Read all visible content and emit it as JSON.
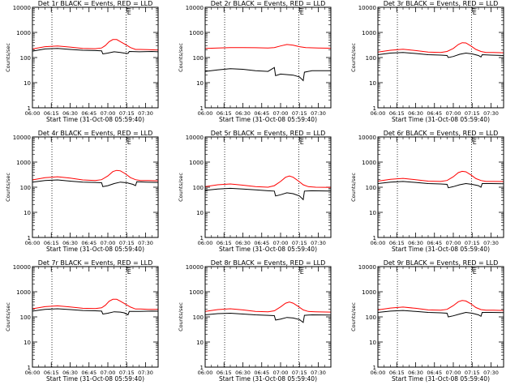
{
  "figure": {
    "colors": {
      "events": "#000000",
      "lld": "#ff0000",
      "frame": "#000000"
    }
  },
  "chart_data": [
    {
      "type": "line",
      "title": "Det 1r BLACK = Events, RED = LLD",
      "xlabel": "Start Time (31-Oct-08 05:59:40)",
      "ylabel": "Counts/sec",
      "x_ticks": [
        "06:00",
        "06:15",
        "06:30",
        "06:45",
        "07:00",
        "07:15",
        "07:30"
      ],
      "x_range_minutes": [
        0,
        100
      ],
      "y_scale": "log",
      "y_ticks": [
        "1",
        "10",
        "100",
        "1000",
        "10000"
      ],
      "ylim": [
        1,
        10000
      ],
      "markers": {
        "dotted_lines_minutes": [
          15.5,
          74.5
        ],
        "E_label_minute": 74
      },
      "series": [
        {
          "name": "Events",
          "x": [
            0,
            10,
            20,
            30,
            40,
            50,
            55,
            56,
            60,
            65,
            70,
            73,
            76,
            77,
            85,
            95,
            100
          ],
          "y": [
            180,
            220,
            230,
            210,
            195,
            190,
            185,
            140,
            150,
            170,
            160,
            150,
            145,
            175,
            170,
            175,
            170
          ]
        },
        {
          "name": "LLD",
          "x": [
            0,
            10,
            20,
            30,
            40,
            50,
            55,
            58,
            61,
            64,
            67,
            70,
            74,
            78,
            82,
            86,
            92,
            100
          ],
          "y": [
            220,
            270,
            290,
            260,
            230,
            225,
            240,
            300,
            430,
            520,
            520,
            430,
            330,
            250,
            210,
            210,
            205,
            200
          ]
        }
      ]
    },
    {
      "type": "line",
      "title": "Det 2r BLACK = Events, RED = LLD",
      "xlabel": "Start Time (31-Oct-08 05:59:40)",
      "ylabel": "Counts/sec",
      "x_ticks": [
        "06:00",
        "06:15",
        "06:30",
        "06:45",
        "07:00",
        "07:15",
        "07:30"
      ],
      "x_range_minutes": [
        0,
        100
      ],
      "y_scale": "log",
      "y_ticks": [
        "1",
        "10",
        "100",
        "1000",
        "10000"
      ],
      "ylim": [
        1,
        10000
      ],
      "markers": {
        "dotted_lines_minutes": [
          15.5,
          74.5
        ],
        "E_label_minute": 74
      },
      "series": [
        {
          "name": "Events",
          "x": [
            0,
            10,
            20,
            30,
            40,
            50,
            55,
            56,
            60,
            70,
            75,
            78,
            79,
            85,
            100
          ],
          "y": [
            28,
            32,
            36,
            34,
            30,
            28,
            40,
            19,
            22,
            20,
            17,
            12,
            26,
            30,
            30
          ]
        },
        {
          "name": "LLD",
          "x": [
            0,
            10,
            20,
            30,
            40,
            50,
            55,
            60,
            65,
            70,
            75,
            80,
            90,
            100
          ],
          "y": [
            230,
            240,
            250,
            250,
            245,
            240,
            250,
            290,
            330,
            310,
            270,
            250,
            240,
            235
          ]
        }
      ]
    },
    {
      "type": "line",
      "title": "Det 3r BLACK = Events, RED = LLD",
      "xlabel": "Start Time (31-Oct-08 05:59:40)",
      "ylabel": "Counts/sec",
      "x_ticks": [
        "06:00",
        "06:15",
        "06:30",
        "06:45",
        "07:00",
        "07:15",
        "07:30"
      ],
      "x_range_minutes": [
        0,
        100
      ],
      "y_scale": "log",
      "y_ticks": [
        "1",
        "10",
        "100",
        "1000",
        "10000"
      ],
      "ylim": [
        1,
        10000
      ],
      "markers": {
        "dotted_lines_minutes": [
          15.5,
          74.5
        ],
        "E_label_minute": 74
      },
      "series": [
        {
          "name": "Events",
          "x": [
            0,
            10,
            20,
            30,
            40,
            50,
            55,
            56,
            60,
            65,
            70,
            75,
            80,
            82,
            83,
            90,
            100
          ],
          "y": [
            130,
            150,
            160,
            145,
            130,
            125,
            120,
            100,
            110,
            135,
            150,
            140,
            120,
            105,
            130,
            125,
            120
          ]
        },
        {
          "name": "LLD",
          "x": [
            0,
            10,
            20,
            30,
            40,
            50,
            55,
            60,
            64,
            67,
            70,
            74,
            78,
            82,
            86,
            92,
            100
          ],
          "y": [
            165,
            195,
            215,
            190,
            165,
            160,
            175,
            230,
            330,
            390,
            380,
            290,
            210,
            175,
            160,
            160,
            155
          ]
        }
      ]
    },
    {
      "type": "line",
      "title": "Det 4r BLACK = Events, RED = LLD",
      "xlabel": "Start Time (31-Oct-08 05:59:40)",
      "ylabel": "Counts/sec",
      "x_ticks": [
        "06:00",
        "06:15",
        "06:30",
        "06:45",
        "07:00",
        "07:15",
        "07:30"
      ],
      "x_range_minutes": [
        0,
        100
      ],
      "y_scale": "log",
      "y_ticks": [
        "1",
        "10",
        "100",
        "1000",
        "10000"
      ],
      "ylim": [
        1,
        10000
      ],
      "markers": {
        "dotted_lines_minutes": [
          15.5,
          74.5
        ],
        "E_label_minute": 74
      },
      "series": [
        {
          "name": "Events",
          "x": [
            0,
            10,
            20,
            30,
            40,
            50,
            55,
            56,
            60,
            65,
            70,
            75,
            80,
            82,
            83,
            90,
            100
          ],
          "y": [
            160,
            185,
            195,
            175,
            160,
            155,
            150,
            105,
            115,
            140,
            160,
            150,
            130,
            115,
            165,
            160,
            155
          ]
        },
        {
          "name": "LLD",
          "x": [
            0,
            10,
            20,
            30,
            40,
            50,
            55,
            60,
            64,
            67,
            70,
            74,
            78,
            82,
            86,
            92,
            100
          ],
          "y": [
            195,
            240,
            260,
            230,
            195,
            185,
            200,
            280,
            420,
            470,
            450,
            340,
            240,
            200,
            185,
            185,
            180
          ]
        }
      ]
    },
    {
      "type": "line",
      "title": "Det 5r BLACK = Events, RED = LLD",
      "xlabel": "Start Time (31-Oct-08 05:59:40)",
      "ylabel": "Counts/sec",
      "x_ticks": [
        "06:00",
        "06:15",
        "06:30",
        "06:45",
        "07:00",
        "07:15",
        "07:30"
      ],
      "x_range_minutes": [
        0,
        100
      ],
      "y_scale": "log",
      "y_ticks": [
        "1",
        "10",
        "100",
        "1000",
        "10000"
      ],
      "ylim": [
        1,
        10000
      ],
      "markers": {
        "dotted_lines_minutes": [
          15.5,
          74.5
        ],
        "E_label_minute": 74
      },
      "series": [
        {
          "name": "Events",
          "x": [
            0,
            10,
            20,
            30,
            40,
            50,
            55,
            56,
            60,
            65,
            70,
            75,
            78,
            79,
            85,
            100
          ],
          "y": [
            75,
            85,
            90,
            85,
            78,
            72,
            70,
            45,
            50,
            60,
            55,
            45,
            32,
            70,
            72,
            70
          ]
        },
        {
          "name": "LLD",
          "x": [
            0,
            10,
            20,
            30,
            40,
            50,
            55,
            60,
            64,
            67,
            70,
            74,
            78,
            82,
            88,
            100
          ],
          "y": [
            105,
            125,
            135,
            120,
            105,
            100,
            115,
            170,
            250,
            280,
            250,
            180,
            125,
            105,
            100,
            98
          ]
        }
      ]
    },
    {
      "type": "line",
      "title": "Det 6r BLACK = Events, RED = LLD",
      "xlabel": "Start Time (31-Oct-08 05:59:40)",
      "ylabel": "Counts/sec",
      "x_ticks": [
        "06:00",
        "06:15",
        "06:30",
        "06:45",
        "07:00",
        "07:15",
        "07:30"
      ],
      "x_range_minutes": [
        0,
        100
      ],
      "y_scale": "log",
      "y_ticks": [
        "1",
        "10",
        "100",
        "1000",
        "10000"
      ],
      "ylim": [
        1,
        10000
      ],
      "markers": {
        "dotted_lines_minutes": [
          15.5,
          74.5
        ],
        "E_label_minute": 74
      },
      "series": [
        {
          "name": "Events",
          "x": [
            0,
            10,
            20,
            30,
            40,
            50,
            55,
            56,
            60,
            65,
            70,
            75,
            80,
            82,
            83,
            90,
            100
          ],
          "y": [
            140,
            160,
            170,
            155,
            140,
            135,
            130,
            95,
            105,
            125,
            140,
            130,
            115,
            100,
            140,
            140,
            138
          ]
        },
        {
          "name": "LLD",
          "x": [
            0,
            10,
            20,
            30,
            40,
            50,
            55,
            60,
            64,
            67,
            70,
            74,
            78,
            82,
            86,
            92,
            100
          ],
          "y": [
            175,
            205,
            225,
            200,
            175,
            170,
            185,
            260,
            380,
            430,
            410,
            310,
            220,
            185,
            170,
            170,
            168
          ]
        }
      ]
    },
    {
      "type": "line",
      "title": "Det 7r BLACK = Events, RED = LLD",
      "xlabel": "Start Time (31-Oct-08 05:59:40)",
      "ylabel": "Counts/sec",
      "x_ticks": [
        "06:00",
        "06:15",
        "06:30",
        "06:45",
        "07:00",
        "07:15",
        "07:30"
      ],
      "x_range_minutes": [
        0,
        100
      ],
      "y_scale": "log",
      "y_ticks": [
        "1",
        "10",
        "100",
        "1000",
        "10000"
      ],
      "ylim": [
        1,
        10000
      ],
      "markers": {
        "dotted_lines_minutes": [
          15.5,
          74.5
        ],
        "E_label_minute": 74
      },
      "series": [
        {
          "name": "Events",
          "x": [
            0,
            10,
            20,
            30,
            40,
            50,
            55,
            56,
            60,
            65,
            70,
            73,
            76,
            77,
            85,
            95,
            100
          ],
          "y": [
            170,
            200,
            210,
            195,
            180,
            175,
            170,
            130,
            140,
            160,
            155,
            145,
            120,
            165,
            165,
            170,
            168
          ]
        },
        {
          "name": "LLD",
          "x": [
            0,
            10,
            20,
            30,
            40,
            50,
            55,
            58,
            61,
            64,
            67,
            70,
            74,
            78,
            82,
            86,
            92,
            100
          ],
          "y": [
            210,
            255,
            275,
            250,
            220,
            215,
            230,
            290,
            420,
            500,
            500,
            420,
            320,
            245,
            205,
            205,
            200,
            198
          ]
        }
      ]
    },
    {
      "type": "line",
      "title": "Det 8r BLACK = Events, RED = LLD",
      "xlabel": "Start Time (31-Oct-08 05:59:40)",
      "ylabel": "Counts/sec",
      "x_ticks": [
        "06:00",
        "06:15",
        "06:30",
        "06:45",
        "07:00",
        "07:15",
        "07:30"
      ],
      "x_range_minutes": [
        0,
        100
      ],
      "y_scale": "log",
      "y_ticks": [
        "1",
        "10",
        "100",
        "1000",
        "10000"
      ],
      "ylim": [
        1,
        10000
      ],
      "markers": {
        "dotted_lines_minutes": [
          15.5,
          74.5
        ],
        "E_label_minute": 74
      },
      "series": [
        {
          "name": "Events",
          "x": [
            0,
            10,
            20,
            30,
            40,
            50,
            55,
            56,
            60,
            65,
            70,
            75,
            78,
            79,
            85,
            100
          ],
          "y": [
            120,
            135,
            140,
            130,
            120,
            115,
            112,
            75,
            82,
            95,
            90,
            78,
            60,
            115,
            120,
            118
          ]
        },
        {
          "name": "LLD",
          "x": [
            0,
            10,
            20,
            30,
            40,
            50,
            55,
            60,
            64,
            67,
            70,
            74,
            78,
            82,
            88,
            100
          ],
          "y": [
            165,
            195,
            210,
            190,
            165,
            160,
            175,
            250,
            350,
            390,
            350,
            260,
            190,
            165,
            160,
            155
          ]
        }
      ]
    },
    {
      "type": "line",
      "title": "Det 9r BLACK = Events, RED = LLD",
      "xlabel": "Start Time (31-Oct-08 05:59:40)",
      "ylabel": "Counts/sec",
      "x_ticks": [
        "06:00",
        "06:15",
        "06:30",
        "06:45",
        "07:00",
        "07:15",
        "07:30"
      ],
      "x_range_minutes": [
        0,
        100
      ],
      "y_scale": "log",
      "y_ticks": [
        "1",
        "10",
        "100",
        "1000",
        "10000"
      ],
      "ylim": [
        1,
        10000
      ],
      "markers": {
        "dotted_lines_minutes": [
          15.5,
          74.5
        ],
        "E_label_minute": 74
      },
      "series": [
        {
          "name": "Events",
          "x": [
            0,
            10,
            20,
            30,
            40,
            50,
            55,
            56,
            60,
            65,
            70,
            75,
            80,
            82,
            83,
            90,
            100
          ],
          "y": [
            150,
            170,
            180,
            165,
            150,
            145,
            140,
            100,
            110,
            130,
            150,
            140,
            120,
            105,
            150,
            150,
            148
          ]
        },
        {
          "name": "LLD",
          "x": [
            0,
            10,
            20,
            30,
            40,
            50,
            55,
            60,
            64,
            67,
            70,
            74,
            78,
            82,
            86,
            92,
            100
          ],
          "y": [
            190,
            225,
            245,
            220,
            190,
            185,
            200,
            280,
            400,
            450,
            430,
            330,
            235,
            195,
            185,
            185,
            180
          ]
        }
      ]
    }
  ]
}
